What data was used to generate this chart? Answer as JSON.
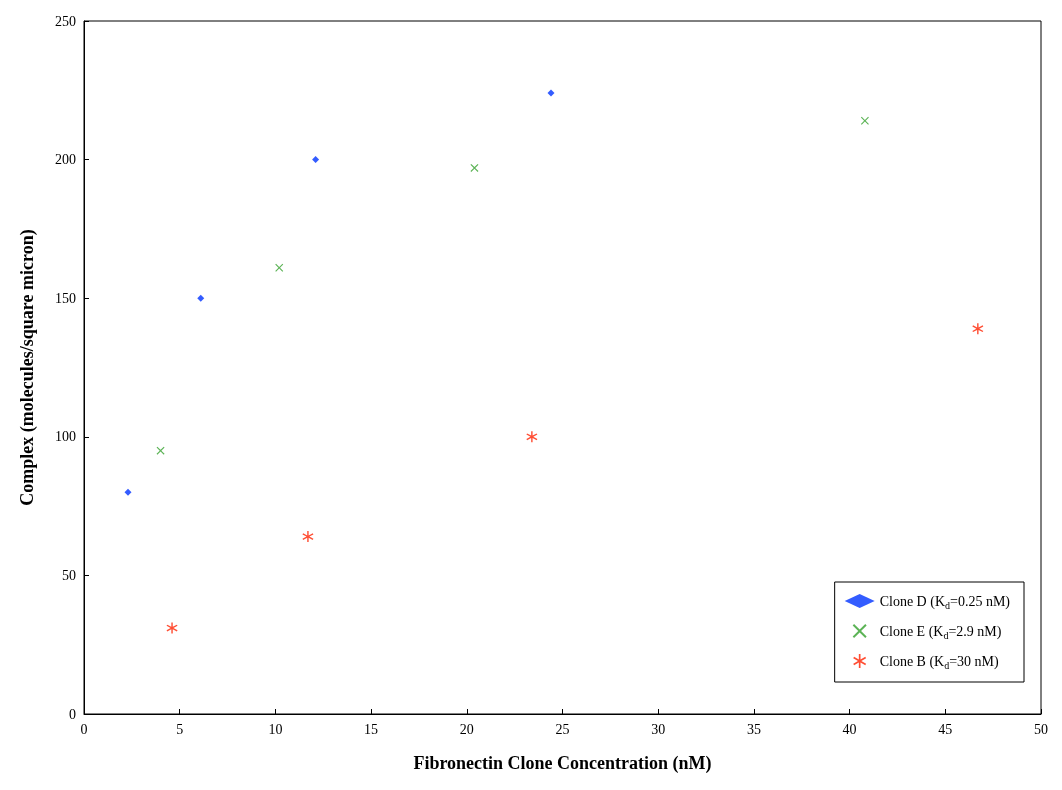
{
  "chart_data": {
    "type": "scatter",
    "xlabel": "Fibronectin Clone Concentration (nM)",
    "ylabel": "Complex (molecules/square micron)",
    "xlim": [
      0,
      50
    ],
    "xticks": [
      0,
      5,
      10,
      15,
      20,
      25,
      30,
      35,
      40,
      45,
      50
    ],
    "ylim": [
      0,
      250
    ],
    "yticks": [
      0,
      50,
      100,
      150,
      200,
      250
    ],
    "grid": false,
    "legend": "bottom right",
    "series": [
      {
        "name": "Clone D (K$_{d}$=0.25 nM)",
        "color": "#0033ff",
        "marker": "diamond",
        "x": [
          2.3,
          6.1,
          12.1,
          24.4
        ],
        "values": [
          80,
          150,
          200,
          224
        ]
      },
      {
        "name": "Clone E (K$_{d}$=2.9 nM)",
        "color": "#33a02c",
        "marker": "cross",
        "x": [
          4.0,
          10.2,
          20.4,
          40.8
        ],
        "values": [
          95,
          161,
          197,
          214
        ]
      },
      {
        "name": "Clone B (K$_{d}$=30 nM)",
        "color": "#ff2200",
        "marker": "star",
        "x": [
          4.6,
          11.7,
          23.4,
          46.7
        ],
        "values": [
          31,
          64,
          100,
          139
        ]
      }
    ]
  }
}
